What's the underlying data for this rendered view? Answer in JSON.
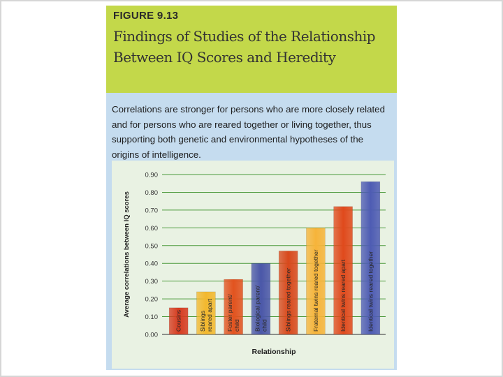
{
  "figure": {
    "label": "FIGURE 9.13",
    "title_line1": "Findings of Studies of the Relationship",
    "title_line2": "Between IQ Scores and Heredity",
    "caption": "Correlations are stronger for persons who are more closely related and for persons who are reared together or living together, thus supporting both genetic and environmental hypotheses of the origins of intelligence."
  },
  "colors": {
    "header_bg": "#c3d84a",
    "figure_bg": "#c5dcef",
    "plot_bg": "#e9f2e3",
    "gridline": "#4c9a3c",
    "bar_colors": [
      "#d63b1f",
      "#f2b82e",
      "#e2531f",
      "#4a57a8",
      "#d8491c",
      "#f6b43a",
      "#e04a1c",
      "#4e5cb3"
    ]
  },
  "chart_data": {
    "type": "bar",
    "title": "",
    "xlabel": "Relationship",
    "ylabel": "Average correlations between IQ scores",
    "ylim": [
      0,
      0.9
    ],
    "yticks": [
      "0.00",
      "0.10",
      "0.20",
      "0.30",
      "0.40",
      "0.50",
      "0.60",
      "0.70",
      "0.80",
      "0.90"
    ],
    "grid": true,
    "categories": [
      [
        "Cousins"
      ],
      [
        "Siblings",
        "reared apart"
      ],
      [
        "Foster parent/",
        "child"
      ],
      [
        "Biological parent/",
        "child"
      ],
      [
        "Siblings reared together"
      ],
      [
        "Fraternal twins reared together"
      ],
      [
        "Identical twins reared apart"
      ],
      [
        "Identical twins reared together"
      ]
    ],
    "values": [
      0.15,
      0.24,
      0.31,
      0.4,
      0.47,
      0.6,
      0.72,
      0.86
    ]
  }
}
